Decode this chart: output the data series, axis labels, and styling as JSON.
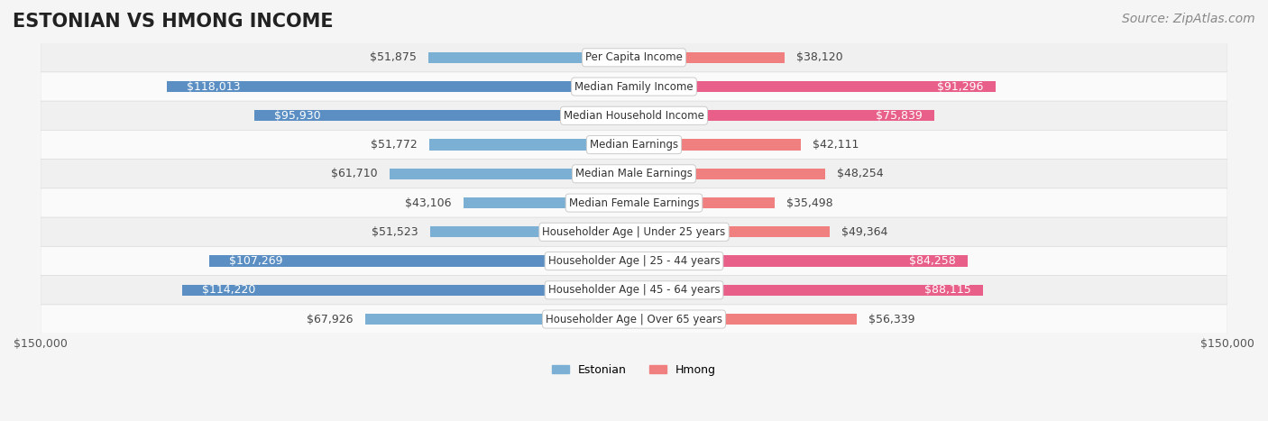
{
  "title": "ESTONIAN VS HMONG INCOME",
  "source": "Source: ZipAtlas.com",
  "categories": [
    "Per Capita Income",
    "Median Family Income",
    "Median Household Income",
    "Median Earnings",
    "Median Male Earnings",
    "Median Female Earnings",
    "Householder Age | Under 25 years",
    "Householder Age | 25 - 44 years",
    "Householder Age | 45 - 64 years",
    "Householder Age | Over 65 years"
  ],
  "estonian_values": [
    51875,
    118013,
    95930,
    51772,
    61710,
    43106,
    51523,
    107269,
    114220,
    67926
  ],
  "hmong_values": [
    38120,
    91296,
    75839,
    42111,
    48254,
    35498,
    49364,
    84258,
    88115,
    56339
  ],
  "estonian_color": "#7bafd4",
  "hmong_color": "#f08080",
  "estonian_strong_color": "#5b8fc4",
  "hmong_strong_color": "#e8608a",
  "max_value": 150000,
  "bg_color": "#f5f5f5",
  "row_bg_light": "#ffffff",
  "row_bg_dark": "#eeeeee",
  "label_bg": "#ffffff",
  "legend_estonian": "Estonian",
  "legend_hmong": "Hmong",
  "title_fontsize": 15,
  "source_fontsize": 10,
  "bar_label_fontsize": 9,
  "category_fontsize": 8.5
}
